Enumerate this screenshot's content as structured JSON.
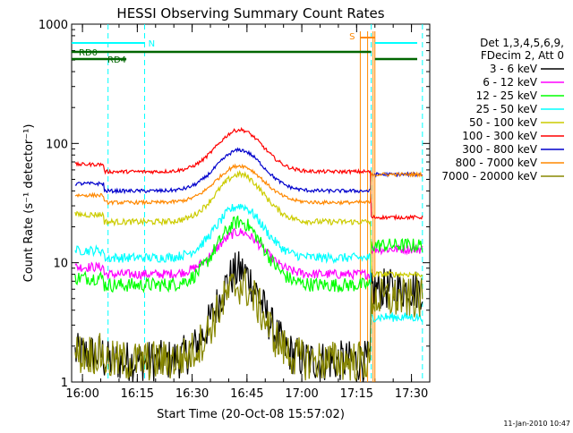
{
  "chart_data": {
    "type": "line",
    "title": "HESSI Observing Summary Count Rates",
    "xlabel": "Start Time (20-Oct-08 15:57:02)",
    "ylabel": "Count Rate (s⁻¹ detector⁻¹)",
    "yscale": "log",
    "ylim": [
      1,
      1000
    ],
    "xlim": [
      "15:57:02",
      "17:35:00"
    ],
    "x_ticks": [
      "16:00",
      "16:15",
      "16:30",
      "16:45",
      "17:00",
      "17:15",
      "17:30"
    ],
    "y_ticks": [
      "1",
      "10",
      "100",
      "1000"
    ],
    "footer": "11-Jan-2010 10:47",
    "legend_position": "right",
    "legend_header": [
      "Det 1,3,4,5,6,9,",
      "FDecim 2, Att 0"
    ],
    "series": [
      {
        "name": "3 - 6 keV",
        "color": "#000000",
        "base": 1.5,
        "peak": 8.5,
        "end": 6,
        "noise": 0.35
      },
      {
        "name": "6 - 12 keV",
        "color": "#ff00ff",
        "base": 8,
        "peak": 18,
        "end": 13,
        "noise": 0.08
      },
      {
        "name": "12 - 25 keV",
        "color": "#00ff00",
        "base": 6.5,
        "peak": 22,
        "end": 14,
        "noise": 0.12
      },
      {
        "name": "25 - 50 keV",
        "color": "#00ffff",
        "base": 11,
        "peak": 30,
        "end": 3.5,
        "noise": 0.08
      },
      {
        "name": "50 - 100 keV",
        "color": "#cccc00",
        "base": 22,
        "peak": 55,
        "end": 8,
        "noise": 0.05
      },
      {
        "name": "100 - 300 keV",
        "color": "#ff0000",
        "base": 58,
        "peak": 130,
        "end": 24,
        "noise": 0.03
      },
      {
        "name": "300 - 800 keV",
        "color": "#0000cc",
        "base": 40,
        "peak": 88,
        "end": 55,
        "noise": 0.03
      },
      {
        "name": "800 - 7000 keV",
        "color": "#ff8800",
        "base": 32,
        "peak": 65,
        "end": 55,
        "noise": 0.03
      },
      {
        "name": "7000 - 20000 keV",
        "color": "#888800",
        "base": 1.5,
        "peak": 6.5,
        "end": 5,
        "noise": 0.35
      }
    ],
    "flags": [
      {
        "label": "N",
        "color": "#00ffff"
      },
      {
        "label": "RD0",
        "color": "#006600"
      },
      {
        "label": "RD4",
        "color": "#006600"
      },
      {
        "label": "S",
        "color": "#ff8800"
      }
    ]
  }
}
